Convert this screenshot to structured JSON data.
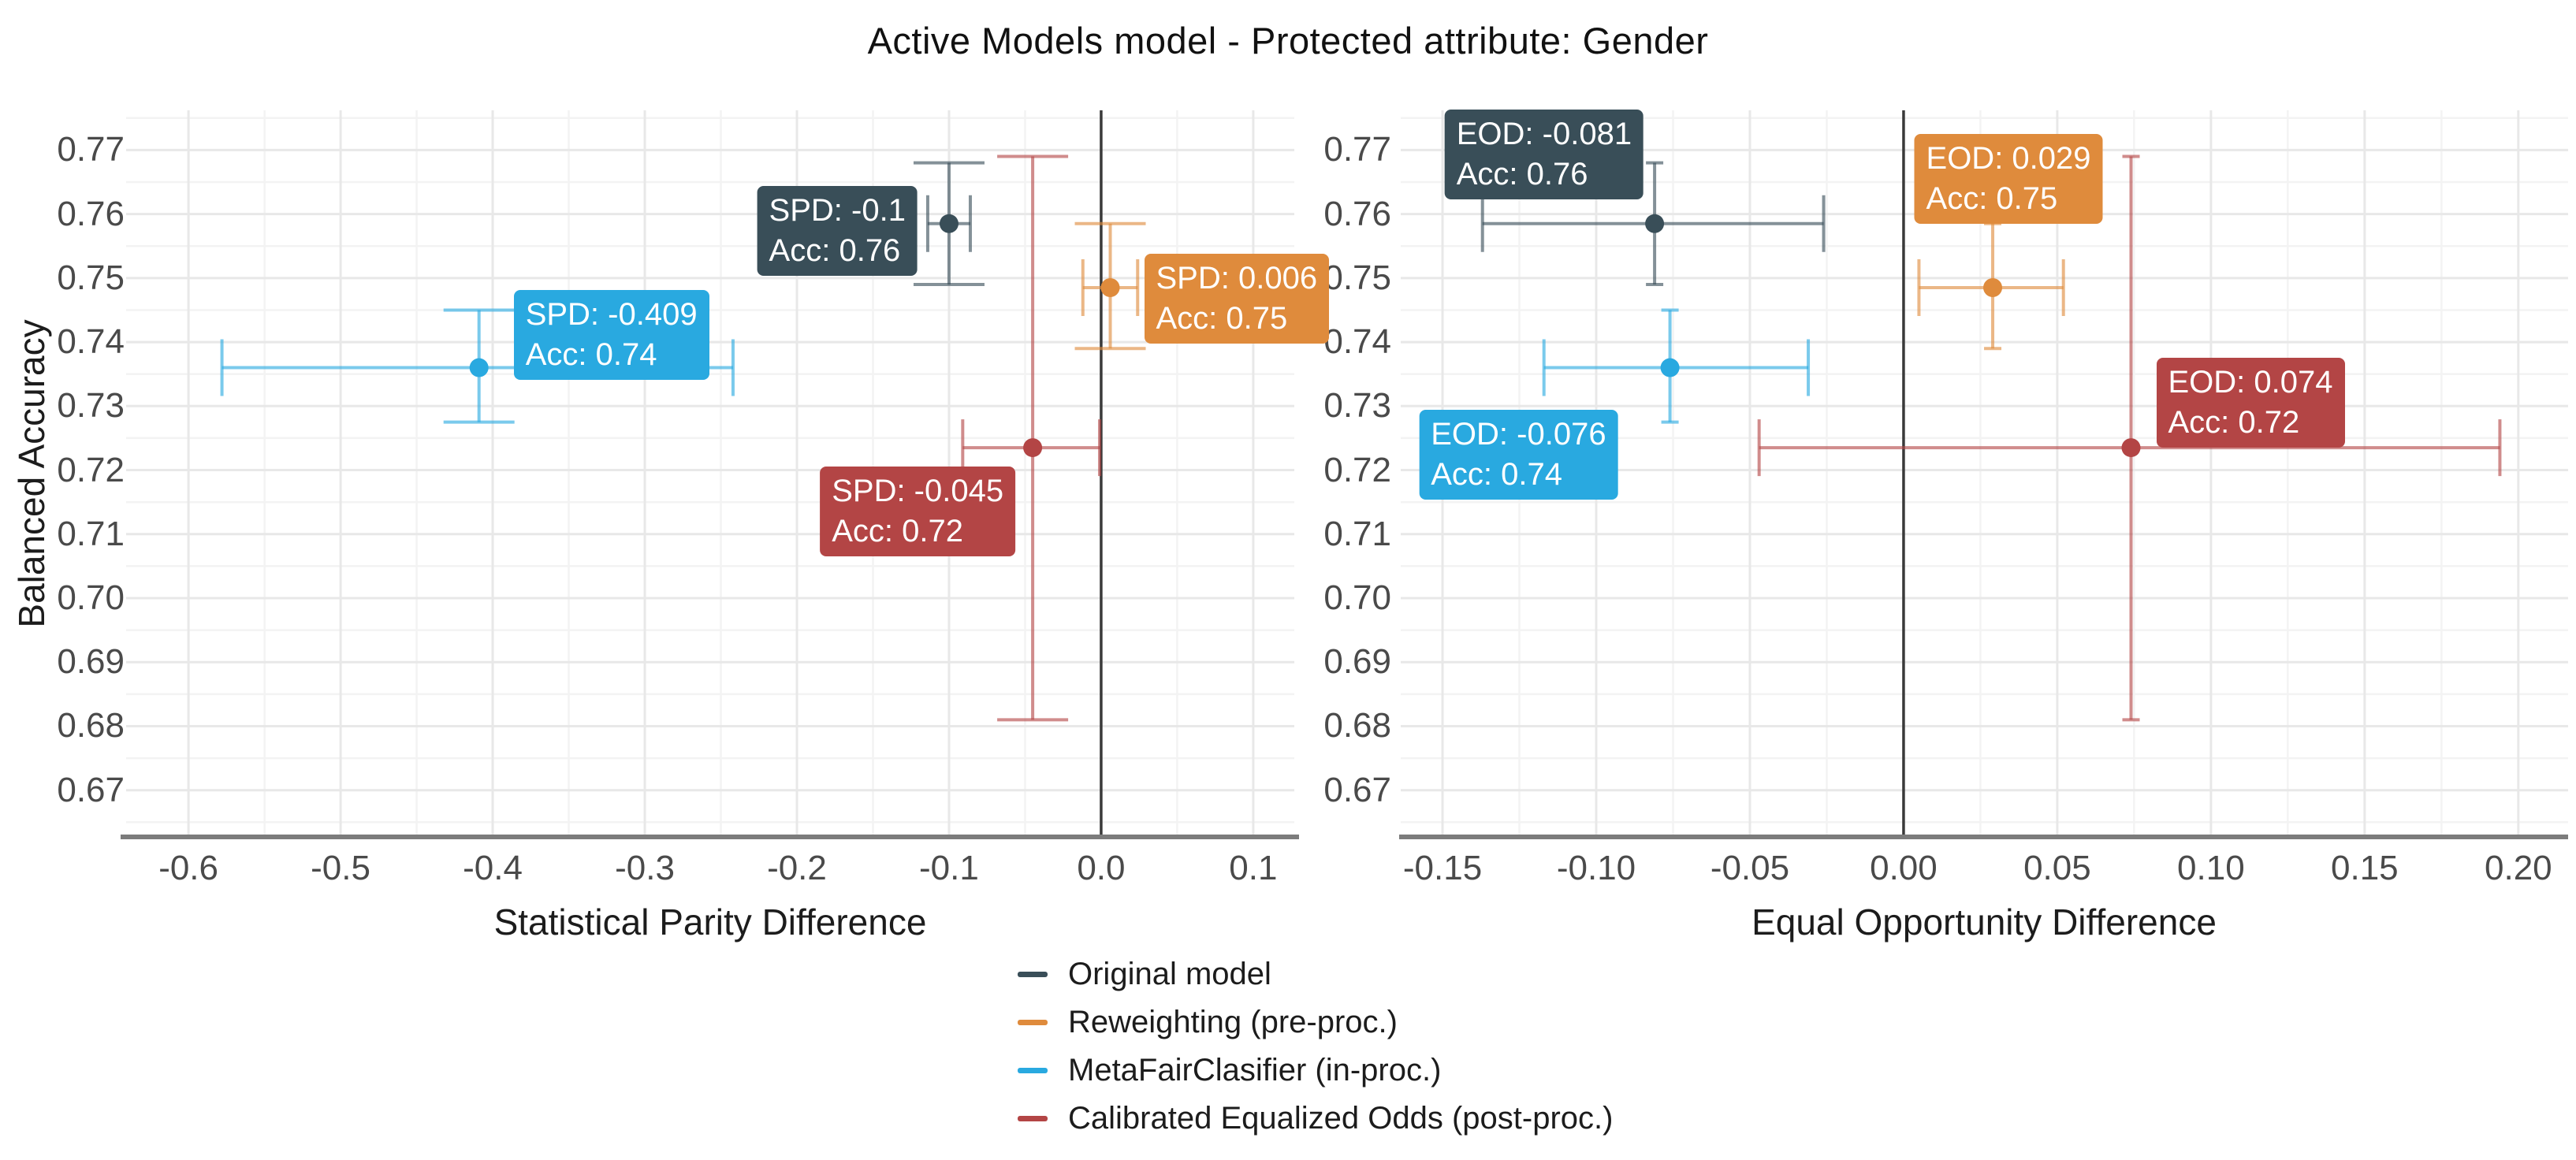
{
  "title": "Active Models model - Protected attribute: Gender",
  "y_axis_title": "Balanced Accuracy",
  "stray_mark": "`",
  "colors": {
    "original": "#394E58",
    "reweighting": "#DF8B3C",
    "metafair": "#29A9E0",
    "calibrated_eq_odds": "#B34545",
    "zero_line": "#3a3a3a",
    "axis_line": "#7c7c7c",
    "grid_major": "#e8e8e8",
    "grid_minor": "#f3f3f3",
    "tick_text": "#4a4a4a"
  },
  "legend": {
    "items": [
      {
        "label": "Original model",
        "color": "#394E58"
      },
      {
        "label": "Reweighting (pre-proc.)",
        "color": "#DF8B3C"
      },
      {
        "label": "MetaFairClasifier (in-proc.)",
        "color": "#29A9E0"
      },
      {
        "label": "Calibrated Equalized Odds (post-proc.)",
        "color": "#B34545"
      }
    ]
  },
  "chart_data": [
    {
      "type": "scatter",
      "xlabel": "Statistical Parity Difference",
      "ylabel": "Balanced Accuracy",
      "xlim": [
        -0.641,
        0.127
      ],
      "ylim": [
        0.6627,
        0.7762
      ],
      "grid": true,
      "zero_line_x": 0,
      "x_ticks": [
        -0.6,
        -0.5,
        -0.4,
        -0.3,
        -0.2,
        -0.1,
        0.0,
        0.1
      ],
      "x_tick_labels": [
        "-0.6",
        "-0.5",
        "-0.4",
        "-0.3",
        "-0.2",
        "-0.1",
        "0.0",
        "0.1"
      ],
      "x_minor": [
        -0.55,
        -0.45,
        -0.35,
        -0.25,
        -0.15,
        -0.05,
        0.05
      ],
      "y_ticks": [
        0.77,
        0.76,
        0.75,
        0.74,
        0.73,
        0.72,
        0.71,
        0.7,
        0.69,
        0.68,
        0.67
      ],
      "y_tick_labels": [
        "0.77",
        "0.76",
        "0.75",
        "0.74",
        "0.73",
        "0.72",
        "0.71",
        "0.70",
        "0.69",
        "0.68",
        "0.67"
      ],
      "y_minor": [
        0.775,
        0.765,
        0.755,
        0.745,
        0.735,
        0.725,
        0.715,
        0.705,
        0.695,
        0.685,
        0.675,
        0.665
      ],
      "series": [
        {
          "name": "Original model",
          "color": "#394E58",
          "x": -0.1,
          "y": 0.7585,
          "x_range": [
            -0.114,
            -0.086
          ],
          "y_range": [
            0.749,
            0.768
          ],
          "label_lines": [
            "SPD: -0.1",
            "Acc: 0.76"
          ],
          "label_anchor": "right",
          "label_offset": [
            -40,
            9
          ]
        },
        {
          "name": "Reweighting (pre-proc.)",
          "color": "#DF8B3C",
          "x": 0.006,
          "y": 0.7485,
          "x_range": [
            -0.012,
            0.024
          ],
          "y_range": [
            0.739,
            0.7585
          ],
          "label_lines": [
            "SPD: 0.006",
            "Acc: 0.75"
          ],
          "label_anchor": "left",
          "label_offset": [
            43,
            14
          ]
        },
        {
          "name": "MetaFairClasifier (in-proc.)",
          "color": "#29A9E0",
          "x": -0.409,
          "y": 0.736,
          "x_range": [
            -0.578,
            -0.242
          ],
          "y_range": [
            0.7275,
            0.745
          ],
          "label_lines": [
            "SPD: -0.409",
            "Acc: 0.74"
          ],
          "label_anchor": "left",
          "label_offset": [
            44,
            -42
          ]
        },
        {
          "name": "Calibrated Equalized Odds (post-proc.)",
          "color": "#B34545",
          "x": -0.045,
          "y": 0.7235,
          "x_range": [
            -0.091,
            -0.001
          ],
          "y_range": [
            0.681,
            0.769
          ],
          "label_lines": [
            "SPD: -0.045",
            "Acc: 0.72"
          ],
          "label_anchor": "right",
          "label_offset": [
            -22,
            81
          ]
        }
      ]
    },
    {
      "type": "scatter",
      "xlabel": "Equal Opportunity Difference",
      "ylabel": "Balanced Accuracy",
      "xlim": [
        -0.1636,
        0.2162
      ],
      "ylim": [
        0.6627,
        0.7762
      ],
      "grid": true,
      "zero_line_x": 0,
      "x_ticks": [
        -0.15,
        -0.1,
        -0.05,
        0.0,
        0.05,
        0.1,
        0.15,
        0.2
      ],
      "x_tick_labels": [
        "-0.15",
        "-0.10",
        "-0.05",
        "0.00",
        "0.05",
        "0.10",
        "0.15",
        "0.20"
      ],
      "x_minor": [
        -0.125,
        -0.075,
        -0.025,
        0.025,
        0.075,
        0.125,
        0.175
      ],
      "y_ticks": [
        0.77,
        0.76,
        0.75,
        0.74,
        0.73,
        0.72,
        0.71,
        0.7,
        0.69,
        0.68,
        0.67
      ],
      "y_tick_labels": [
        "0.77",
        "0.76",
        "0.75",
        "0.74",
        "0.73",
        "0.72",
        "0.71",
        "0.70",
        "0.69",
        "0.68",
        "0.67"
      ],
      "y_minor": [
        0.775,
        0.765,
        0.755,
        0.745,
        0.735,
        0.725,
        0.715,
        0.705,
        0.695,
        0.685,
        0.675,
        0.665
      ],
      "series": [
        {
          "name": "Original model",
          "color": "#394E58",
          "x": -0.081,
          "y": 0.7585,
          "x_range": [
            -0.137,
            -0.026
          ],
          "y_range": [
            0.749,
            0.768
          ],
          "label_lines": [
            "EOD: -0.081",
            "Acc: 0.76"
          ],
          "label_anchor": "right",
          "label_offset": [
            -14,
            -88
          ]
        },
        {
          "name": "Reweighting (pre-proc.)",
          "color": "#DF8B3C",
          "x": 0.029,
          "y": 0.7485,
          "x_range": [
            0.005,
            0.052
          ],
          "y_range": [
            0.739,
            0.7585
          ],
          "label_lines": [
            "EOD: 0.029",
            "Acc: 0.75"
          ],
          "label_anchor": "center",
          "label_offset": [
            20,
            -138
          ]
        },
        {
          "name": "MetaFairClasifier (in-proc.)",
          "color": "#29A9E0",
          "x": -0.076,
          "y": 0.736,
          "x_range": [
            -0.117,
            -0.031
          ],
          "y_range": [
            0.7275,
            0.745
          ],
          "label_lines": [
            "EOD: -0.076",
            "Acc: 0.74"
          ],
          "label_anchor": "right",
          "label_offset": [
            -66,
            110
          ]
        },
        {
          "name": "Calibrated Equalized Odds (post-proc.)",
          "color": "#B34545",
          "x": 0.074,
          "y": 0.7235,
          "x_range": [
            -0.047,
            0.194
          ],
          "y_range": [
            0.681,
            0.769
          ],
          "label_lines": [
            "EOD: 0.074",
            "Acc: 0.72"
          ],
          "label_anchor": "left",
          "label_offset": [
            32,
            -57
          ]
        }
      ]
    }
  ]
}
